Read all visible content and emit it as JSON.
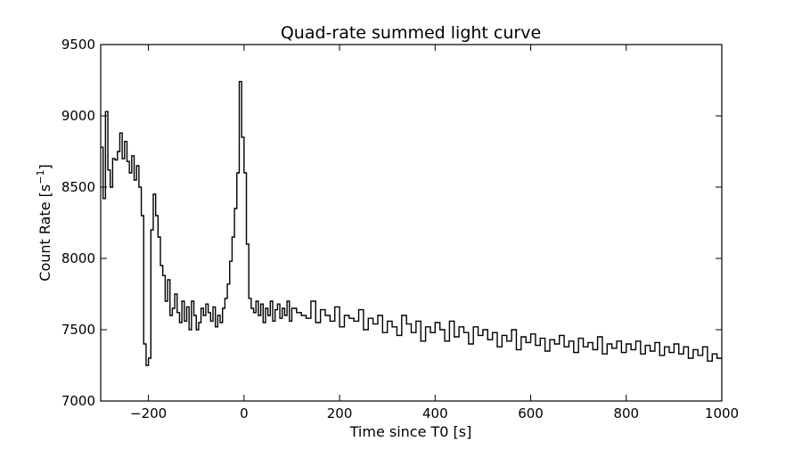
{
  "chart_data": {
    "type": "line",
    "title": "Quad-rate summed light curve",
    "xlabel": "Time since T0 [s]",
    "ylabel_main": "Count Rate [s",
    "ylabel_sup": "−1",
    "ylabel_end": "]",
    "xlim": [
      -300,
      1000
    ],
    "ylim": [
      7000,
      9500
    ],
    "xticks": [
      -200,
      0,
      200,
      400,
      600,
      800,
      1000
    ],
    "xtick_labels": [
      "−200",
      "0",
      "200",
      "400",
      "600",
      "800",
      "1000"
    ],
    "yticks": [
      7000,
      7500,
      8000,
      8500,
      9000,
      9500
    ],
    "ytick_labels": [
      "7000",
      "7500",
      "8000",
      "8500",
      "9000",
      "9500"
    ],
    "line_color": "#000000",
    "series": [
      {
        "step": "post",
        "x": [
          -300,
          -295,
          -290,
          -285,
          -280,
          -275,
          -270,
          -265,
          -260,
          -255,
          -250,
          -245,
          -240,
          -235,
          -230,
          -225,
          -220,
          -215,
          -210,
          -205,
          -200,
          -195,
          -190,
          -185,
          -180,
          -175,
          -170,
          -165,
          -160,
          -155,
          -150,
          -145,
          -140,
          -135,
          -130,
          -125,
          -120,
          -115,
          -110,
          -105,
          -100,
          -95,
          -90,
          -85,
          -80,
          -75,
          -70,
          -65,
          -60,
          -55,
          -50,
          -45,
          -40,
          -35,
          -30,
          -25,
          -20,
          -15,
          -10,
          -5,
          0,
          5,
          10,
          15,
          20,
          25,
          30,
          35,
          40,
          45,
          50,
          55,
          60,
          65,
          70,
          75,
          80,
          85,
          90,
          95,
          100,
          110,
          120,
          130,
          140,
          150,
          160,
          170,
          180,
          190,
          200,
          210,
          220,
          230,
          240,
          250,
          260,
          270,
          280,
          290,
          300,
          310,
          320,
          330,
          340,
          350,
          360,
          370,
          380,
          390,
          400,
          410,
          420,
          430,
          440,
          450,
          460,
          470,
          480,
          490,
          500,
          510,
          520,
          530,
          540,
          550,
          560,
          570,
          580,
          590,
          600,
          610,
          620,
          630,
          640,
          650,
          660,
          670,
          680,
          690,
          700,
          710,
          720,
          730,
          740,
          750,
          760,
          770,
          780,
          790,
          800,
          810,
          820,
          830,
          840,
          850,
          860,
          870,
          880,
          890,
          900,
          910,
          920,
          930,
          940,
          950,
          960,
          970,
          980,
          990,
          1000
        ],
        "y": [
          8780,
          8420,
          9030,
          8620,
          8500,
          8700,
          8690,
          8750,
          8880,
          8700,
          8820,
          8680,
          8600,
          8720,
          8550,
          8650,
          8500,
          8300,
          7400,
          7250,
          7300,
          8200,
          8450,
          8300,
          8150,
          7950,
          7880,
          7700,
          7850,
          7600,
          7650,
          7750,
          7620,
          7550,
          7700,
          7560,
          7660,
          7500,
          7700,
          7600,
          7500,
          7550,
          7650,
          7600,
          7680,
          7620,
          7560,
          7660,
          7520,
          7600,
          7550,
          7650,
          7720,
          7820,
          7980,
          8150,
          8350,
          8600,
          9240,
          8850,
          8600,
          8100,
          7720,
          7650,
          7620,
          7700,
          7600,
          7680,
          7550,
          7650,
          7600,
          7700,
          7560,
          7640,
          7680,
          7580,
          7650,
          7600,
          7700,
          7560,
          7650,
          7620,
          7600,
          7580,
          7700,
          7550,
          7640,
          7600,
          7560,
          7660,
          7520,
          7600,
          7580,
          7560,
          7640,
          7500,
          7580,
          7540,
          7600,
          7480,
          7560,
          7520,
          7460,
          7600,
          7540,
          7480,
          7560,
          7420,
          7520,
          7480,
          7550,
          7500,
          7420,
          7560,
          7450,
          7520,
          7480,
          7400,
          7520,
          7460,
          7500,
          7430,
          7480,
          7380,
          7460,
          7420,
          7500,
          7360,
          7450,
          7410,
          7470,
          7390,
          7440,
          7350,
          7430,
          7400,
          7460,
          7380,
          7420,
          7340,
          7440,
          7380,
          7410,
          7360,
          7450,
          7330,
          7400,
          7370,
          7420,
          7340,
          7400,
          7360,
          7420,
          7330,
          7390,
          7350,
          7410,
          7320,
          7380,
          7340,
          7400,
          7330,
          7380,
          7300,
          7360,
          7320,
          7380,
          7280,
          7330,
          7300,
          7300
        ]
      }
    ]
  }
}
